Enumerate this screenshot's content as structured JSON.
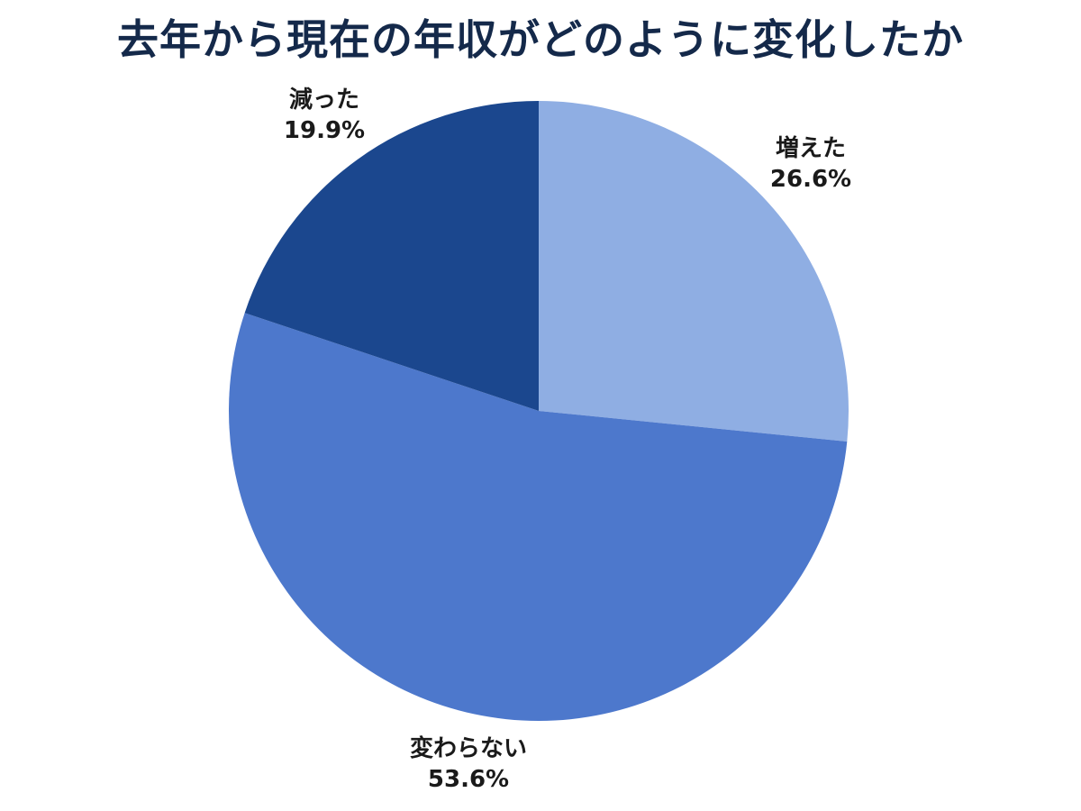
{
  "chart_data": {
    "type": "pie",
    "title": "去年から現在の年収がどのように変化したか",
    "start_angle": "12 o'clock, clockwise",
    "slices": [
      {
        "label": "増えた",
        "value": 26.6,
        "display": "26.6%",
        "color": "#8FAEE3"
      },
      {
        "label": "変わらない",
        "value": 53.6,
        "display": "53.6%",
        "color": "#4D78CC"
      },
      {
        "label": "減った",
        "value": 19.9,
        "display": "19.9%",
        "color": "#1B478E"
      }
    ],
    "legend": "none (labels outside slices)"
  }
}
